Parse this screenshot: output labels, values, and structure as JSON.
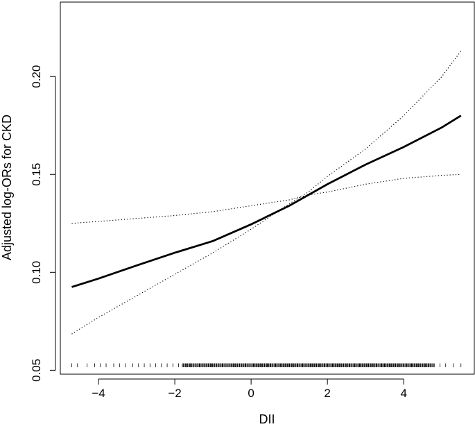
{
  "chart_data": {
    "type": "line",
    "title": "",
    "xlabel": "DII",
    "ylabel": "Adjusted log-ORs for CKD",
    "xlim": [
      -5.0,
      5.85
    ],
    "ylim": [
      0.048,
      0.238
    ],
    "grid": false,
    "x_ticks": [
      -4,
      -2,
      0,
      2,
      4
    ],
    "x_tick_labels": [
      "−4",
      "−2",
      "0",
      "2",
      "4"
    ],
    "y_ticks": [
      0.05,
      0.1,
      0.15,
      0.2
    ],
    "y_tick_labels": [
      "0.05",
      "0.10",
      "0.15",
      "0.20"
    ],
    "series": [
      {
        "style": "solid",
        "x": [
          -4.7,
          -4.0,
          -3.0,
          -2.0,
          -1.0,
          0.0,
          1.0,
          2.0,
          3.0,
          4.0,
          5.0,
          5.5
        ],
        "values": [
          0.0925,
          0.0968,
          0.1035,
          0.11,
          0.116,
          0.1245,
          0.134,
          0.145,
          0.155,
          0.164,
          0.174,
          0.18
        ]
      },
      {
        "style": "dotted",
        "x": [
          -4.7,
          -4.0,
          -3.0,
          -2.0,
          -1.0,
          0.0,
          1.0,
          1.5,
          2.0,
          3.0,
          4.0,
          5.0,
          5.5
        ],
        "values": [
          0.0685,
          0.077,
          0.088,
          0.099,
          0.11,
          0.122,
          0.135,
          0.141,
          0.149,
          0.163,
          0.18,
          0.2,
          0.213
        ]
      },
      {
        "style": "dotted",
        "x": [
          -4.7,
          -4.0,
          -3.0,
          -2.0,
          -1.0,
          0.0,
          1.0,
          1.5,
          2.0,
          3.0,
          4.0,
          5.0,
          5.5
        ],
        "values": [
          0.125,
          0.126,
          0.1275,
          0.129,
          0.131,
          0.134,
          0.137,
          0.1395,
          0.141,
          0.145,
          0.148,
          0.1495,
          0.15
        ]
      }
    ],
    "rug": {
      "x": [
        -4.7,
        -4.55,
        -4.3,
        -4.1,
        -3.95,
        -3.8,
        -3.6,
        -3.45,
        -3.3,
        -3.1,
        -2.95,
        -2.8,
        -2.65,
        -2.5,
        -2.35,
        -2.2,
        -2.05,
        -1.9,
        -1.8,
        -1.7,
        -1.6,
        -1.5,
        -1.42,
        -1.35,
        -1.28,
        -1.2,
        -1.12,
        -1.05,
        -0.98,
        -0.9,
        -0.82,
        -0.75,
        -0.68,
        -0.6,
        -0.52,
        -0.45,
        -0.38,
        -0.3,
        -0.22,
        -0.15,
        -0.08,
        0.0,
        0.07,
        0.14,
        0.21,
        0.28,
        0.35,
        0.42,
        0.5,
        0.57,
        0.64,
        0.71,
        0.78,
        0.85,
        0.92,
        1.0,
        1.07,
        1.14,
        1.21,
        1.28,
        1.35,
        1.42,
        1.5,
        1.57,
        1.64,
        1.71,
        1.78,
        1.85,
        1.92,
        2.0,
        2.07,
        2.14,
        2.21,
        2.28,
        2.35,
        2.42,
        2.5,
        2.57,
        2.64,
        2.71,
        2.78,
        2.85,
        2.92,
        3.0,
        3.07,
        3.14,
        3.21,
        3.28,
        3.35,
        3.42,
        3.5,
        3.57,
        3.64,
        3.71,
        3.78,
        3.85,
        3.92,
        4.0,
        4.07,
        4.14,
        4.21,
        4.28,
        4.35,
        4.42,
        4.5,
        4.57,
        4.64,
        4.71,
        4.8,
        4.95,
        5.1,
        5.3,
        5.5
      ]
    }
  }
}
